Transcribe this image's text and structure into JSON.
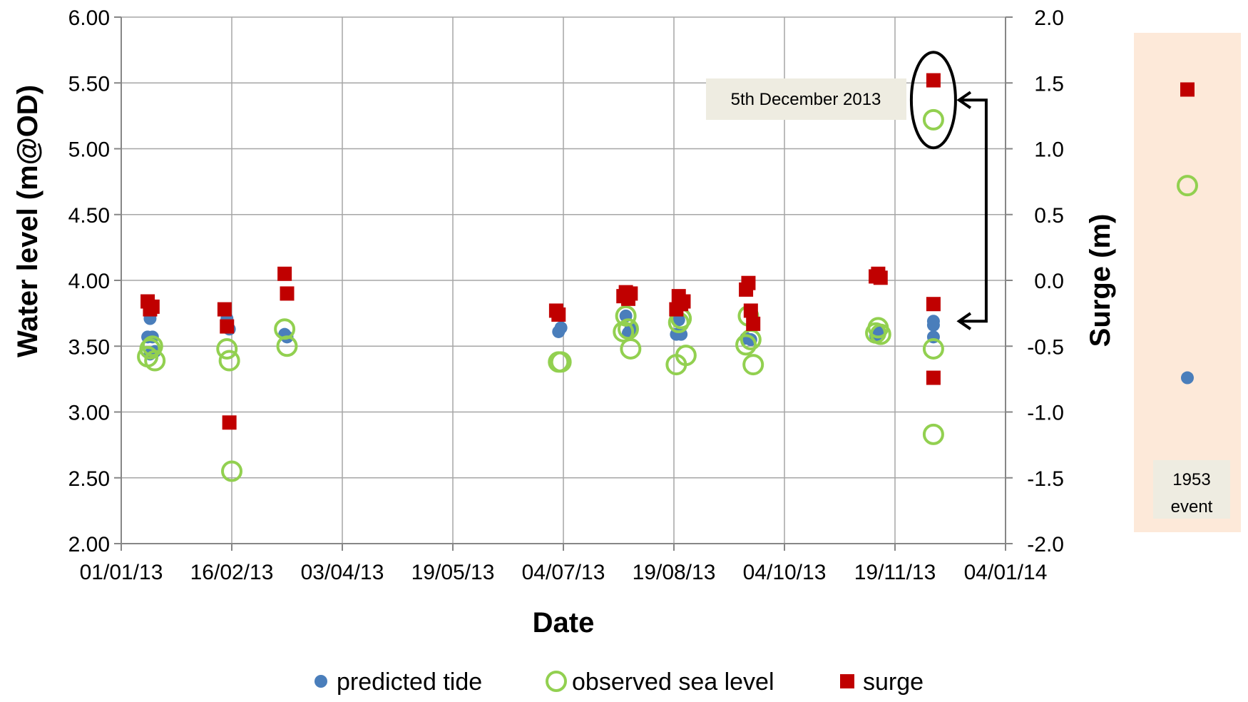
{
  "chart_data": {
    "type": "scatter",
    "xlabel": "Date",
    "ylabel": "Water level (m@OD)",
    "y2label": "Surge (m)",
    "x_start": "01/01/13",
    "x_step_days": 46,
    "x_ticks": [
      "01/01/13",
      "16/02/13",
      "03/04/13",
      "19/05/13",
      "04/07/13",
      "19/08/13",
      "04/10/13",
      "19/11/13",
      "04/01/14"
    ],
    "y_ticks": [
      "2.00",
      "2.50",
      "3.00",
      "3.50",
      "4.00",
      "4.50",
      "5.00",
      "5.50",
      "6.00"
    ],
    "y2_ticks": [
      "-2.0",
      "-1.5",
      "-1.0",
      "-0.5",
      "0.0",
      "0.5",
      "1.0",
      "1.5",
      "2.0"
    ],
    "ylim": [
      2.0,
      6.0
    ],
    "y2lim": [
      -2.0,
      2.0
    ],
    "grid": true,
    "legend_position": "bottom",
    "series": [
      {
        "name": "predicted tide",
        "axis": "left",
        "marker": "filled-circle",
        "color": "#4a7ebb",
        "points": [
          {
            "x": "2013-01-12",
            "y": 3.57
          },
          {
            "x": "2013-01-13",
            "y": 3.71
          },
          {
            "x": "2013-01-14",
            "y": 3.57
          },
          {
            "x": "2013-01-15",
            "y": 3.46
          },
          {
            "x": "2013-01-13",
            "y": 3.44
          },
          {
            "x": "2013-02-14",
            "y": 3.71
          },
          {
            "x": "2013-02-15",
            "y": 3.63
          },
          {
            "x": "2013-03-10",
            "y": 3.59
          },
          {
            "x": "2013-03-11",
            "y": 3.57
          },
          {
            "x": "2013-07-02",
            "y": 3.61
          },
          {
            "x": "2013-07-03",
            "y": 3.64
          },
          {
            "x": "2013-07-30",
            "y": 3.73
          },
          {
            "x": "2013-07-31",
            "y": 3.6
          },
          {
            "x": "2013-08-01",
            "y": 3.63
          },
          {
            "x": "2013-08-20",
            "y": 3.59
          },
          {
            "x": "2013-08-22",
            "y": 3.59
          },
          {
            "x": "2013-08-21",
            "y": 3.7
          },
          {
            "x": "2013-09-18",
            "y": 3.56
          },
          {
            "x": "2013-09-20",
            "y": 3.55
          },
          {
            "x": "2013-11-11",
            "y": 3.58
          },
          {
            "x": "2013-11-12",
            "y": 3.61
          },
          {
            "x": "2013-12-05",
            "y": 3.66
          },
          {
            "x": "2013-12-05",
            "y": 3.69
          },
          {
            "x": "2013-12-05",
            "y": 3.57
          }
        ]
      },
      {
        "name": "observed sea level",
        "axis": "left",
        "marker": "open-circle",
        "color": "#92d050",
        "points": [
          {
            "x": "2013-01-12",
            "y": 3.42
          },
          {
            "x": "2013-01-13",
            "y": 3.48
          },
          {
            "x": "2013-01-14",
            "y": 3.5
          },
          {
            "x": "2013-01-15",
            "y": 3.39
          },
          {
            "x": "2013-02-14",
            "y": 3.48
          },
          {
            "x": "2013-02-15",
            "y": 3.39
          },
          {
            "x": "2013-02-16",
            "y": 2.55
          },
          {
            "x": "2013-03-10",
            "y": 3.63
          },
          {
            "x": "2013-03-11",
            "y": 3.5
          },
          {
            "x": "2013-07-02",
            "y": 3.38
          },
          {
            "x": "2013-07-03",
            "y": 3.38
          },
          {
            "x": "2013-07-29",
            "y": 3.61
          },
          {
            "x": "2013-07-30",
            "y": 3.73
          },
          {
            "x": "2013-07-31",
            "y": 3.63
          },
          {
            "x": "2013-08-01",
            "y": 3.48
          },
          {
            "x": "2013-08-20",
            "y": 3.36
          },
          {
            "x": "2013-08-21",
            "y": 3.68
          },
          {
            "x": "2013-08-22",
            "y": 3.71
          },
          {
            "x": "2013-08-24",
            "y": 3.43
          },
          {
            "x": "2013-09-18",
            "y": 3.51
          },
          {
            "x": "2013-09-19",
            "y": 3.73
          },
          {
            "x": "2013-09-20",
            "y": 3.55
          },
          {
            "x": "2013-09-21",
            "y": 3.36
          },
          {
            "x": "2013-11-11",
            "y": 3.6
          },
          {
            "x": "2013-11-12",
            "y": 3.64
          },
          {
            "x": "2013-11-13",
            "y": 3.59
          },
          {
            "x": "2013-12-05",
            "y": 5.22
          },
          {
            "x": "2013-12-05",
            "y": 3.48
          },
          {
            "x": "2013-12-05",
            "y": 2.83
          }
        ]
      },
      {
        "name": "surge",
        "axis": "right",
        "marker": "filled-square",
        "color": "#c00000",
        "points": [
          {
            "x": "2013-01-12",
            "y": -0.16
          },
          {
            "x": "2013-01-13",
            "y": -0.22
          },
          {
            "x": "2013-01-14",
            "y": -0.2
          },
          {
            "x": "2013-02-13",
            "y": -0.22
          },
          {
            "x": "2013-02-14",
            "y": -0.35
          },
          {
            "x": "2013-02-15",
            "y": -1.08
          },
          {
            "x": "2013-03-10",
            "y": 0.05
          },
          {
            "x": "2013-03-11",
            "y": -0.1
          },
          {
            "x": "2013-07-01",
            "y": -0.23
          },
          {
            "x": "2013-07-02",
            "y": -0.26
          },
          {
            "x": "2013-07-29",
            "y": -0.12
          },
          {
            "x": "2013-07-30",
            "y": -0.09
          },
          {
            "x": "2013-07-31",
            "y": -0.14
          },
          {
            "x": "2013-08-01",
            "y": -0.1
          },
          {
            "x": "2013-08-20",
            "y": -0.22
          },
          {
            "x": "2013-08-21",
            "y": -0.12
          },
          {
            "x": "2013-08-22",
            "y": -0.18
          },
          {
            "x": "2013-08-23",
            "y": -0.16
          },
          {
            "x": "2013-09-18",
            "y": -0.07
          },
          {
            "x": "2013-09-19",
            "y": -0.02
          },
          {
            "x": "2013-09-20",
            "y": -0.23
          },
          {
            "x": "2013-09-21",
            "y": -0.33
          },
          {
            "x": "2013-11-11",
            "y": 0.03
          },
          {
            "x": "2013-11-12",
            "y": 0.05
          },
          {
            "x": "2013-11-13",
            "y": 0.02
          },
          {
            "x": "2013-12-05",
            "y": 1.52
          },
          {
            "x": "2013-12-05",
            "y": -0.18
          },
          {
            "x": "2013-12-05",
            "y": -0.74
          }
        ]
      }
    ],
    "annotations": [
      {
        "text": "5th December 2013",
        "target_date": "2013-12-05",
        "target_level": 5.37,
        "arrow_to_level": 3.69
      }
    ],
    "side_panel": {
      "label": "1953 event",
      "label_lines": [
        "1953",
        "event"
      ],
      "background": "#fde9d9",
      "predicted_tide": 3.26,
      "observed_sea_level": 4.72,
      "surge": 1.45
    }
  }
}
